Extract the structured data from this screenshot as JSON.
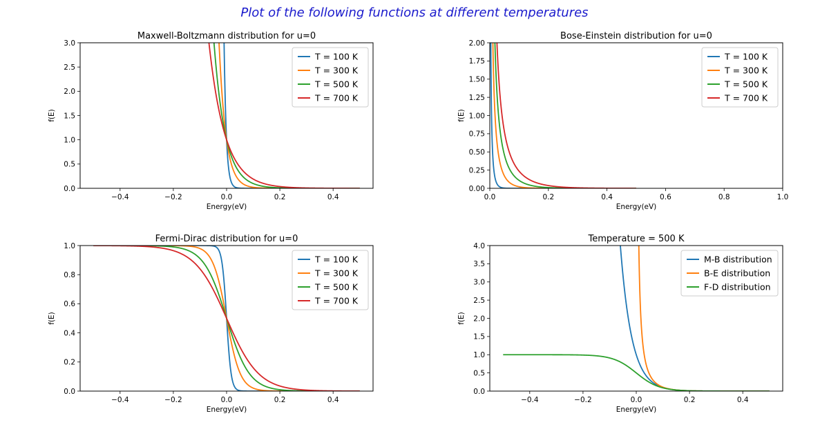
{
  "suptitle": "Plot of the following functions at different temperatures",
  "colors": {
    "blue": "#1f77b4",
    "orange": "#ff7f0e",
    "green": "#2ca02c",
    "red": "#d62728"
  },
  "chart_data": [
    {
      "id": "mb",
      "type": "line",
      "title": "Maxwell-Boltzmann distribution for u=0",
      "xlabel": "Energy(eV)",
      "ylabel": "f(E)",
      "xlim": [
        -0.55,
        0.55
      ],
      "ylim": [
        0,
        3.0
      ],
      "xticks": [
        -0.4,
        -0.2,
        0.0,
        0.2,
        0.4
      ],
      "xtick_labels": [
        "−0.4",
        "−0.2",
        "0.0",
        "0.2",
        "0.4"
      ],
      "yticks": [
        0,
        0.5,
        1.0,
        1.5,
        2.0,
        2.5,
        3.0
      ],
      "ytick_labels": [
        "0.0",
        "0.5",
        "1.0",
        "1.5",
        "2.0",
        "2.5",
        "3.0"
      ],
      "legend": "top-right",
      "function": "maxwell_boltzmann",
      "x_range": [
        -0.5,
        0.5
      ],
      "series": [
        {
          "name": "T = 100 K",
          "T": 100,
          "color": "#1f77b4"
        },
        {
          "name": "T = 300 K",
          "T": 300,
          "color": "#ff7f0e"
        },
        {
          "name": "T = 500 K",
          "T": 500,
          "color": "#2ca02c"
        },
        {
          "name": "T = 700 K",
          "T": 700,
          "color": "#d62728"
        }
      ]
    },
    {
      "id": "be",
      "type": "line",
      "title": "Bose-Einstein distribution for u=0",
      "xlabel": "Energy(eV)",
      "ylabel": "f(E)",
      "xlim": [
        0.0,
        1.0
      ],
      "ylim": [
        0,
        2.0
      ],
      "xticks": [
        0.0,
        0.2,
        0.4,
        0.6,
        0.8,
        1.0
      ],
      "xtick_labels": [
        "0.0",
        "0.2",
        "0.4",
        "0.6",
        "0.8",
        "1.0"
      ],
      "yticks": [
        0,
        0.25,
        0.5,
        0.75,
        1.0,
        1.25,
        1.5,
        1.75,
        2.0
      ],
      "ytick_labels": [
        "0.00",
        "0.25",
        "0.50",
        "0.75",
        "1.00",
        "1.25",
        "1.50",
        "1.75",
        "2.00"
      ],
      "legend": "top-right",
      "function": "bose_einstein",
      "x_range": [
        0.0005,
        0.5
      ],
      "series": [
        {
          "name": "T = 100 K",
          "T": 100,
          "color": "#1f77b4"
        },
        {
          "name": "T = 300 K",
          "T": 300,
          "color": "#ff7f0e"
        },
        {
          "name": "T = 500 K",
          "T": 500,
          "color": "#2ca02c"
        },
        {
          "name": "T = 700 K",
          "T": 700,
          "color": "#d62728"
        }
      ]
    },
    {
      "id": "fd",
      "type": "line",
      "title": "Fermi-Dirac distribution for u=0",
      "xlabel": "Energy(eV)",
      "ylabel": "f(E)",
      "xlim": [
        -0.55,
        0.55
      ],
      "ylim": [
        0,
        1.0
      ],
      "xticks": [
        -0.4,
        -0.2,
        0.0,
        0.2,
        0.4
      ],
      "xtick_labels": [
        "−0.4",
        "−0.2",
        "0.0",
        "0.2",
        "0.4"
      ],
      "yticks": [
        0,
        0.2,
        0.4,
        0.6,
        0.8,
        1.0
      ],
      "ytick_labels": [
        "0.0",
        "0.2",
        "0.4",
        "0.6",
        "0.8",
        "1.0"
      ],
      "legend": "top-right",
      "function": "fermi_dirac",
      "x_range": [
        -0.5,
        0.5
      ],
      "series": [
        {
          "name": "T = 100 K",
          "T": 100,
          "color": "#1f77b4"
        },
        {
          "name": "T = 300 K",
          "T": 300,
          "color": "#ff7f0e"
        },
        {
          "name": "T = 500 K",
          "T": 500,
          "color": "#2ca02c"
        },
        {
          "name": "T = 700 K",
          "T": 700,
          "color": "#d62728"
        }
      ]
    },
    {
      "id": "cmp",
      "type": "line",
      "title": "Temperature = 500 K",
      "xlabel": "Energy(eV)",
      "ylabel": "f(E)",
      "xlim": [
        -0.55,
        0.55
      ],
      "ylim": [
        0,
        4.0
      ],
      "xticks": [
        -0.4,
        -0.2,
        0.0,
        0.2,
        0.4
      ],
      "xtick_labels": [
        "−0.4",
        "−0.2",
        "0.0",
        "0.2",
        "0.4"
      ],
      "yticks": [
        0,
        0.5,
        1.0,
        1.5,
        2.0,
        2.5,
        3.0,
        3.5,
        4.0
      ],
      "ytick_labels": [
        "0.0",
        "0.5",
        "1.0",
        "1.5",
        "2.0",
        "2.5",
        "3.0",
        "3.5",
        "4.0"
      ],
      "legend": "top-right",
      "T": 500,
      "series": [
        {
          "name": "M-B distribution",
          "function": "maxwell_boltzmann",
          "x_range": [
            -0.5,
            0.5
          ],
          "color": "#1f77b4"
        },
        {
          "name": "B-E distribution",
          "function": "bose_einstein",
          "x_range": [
            0.0005,
            0.5
          ],
          "color": "#ff7f0e"
        },
        {
          "name": "F-D distribution",
          "function": "fermi_dirac",
          "x_range": [
            -0.5,
            0.5
          ],
          "color": "#2ca02c"
        }
      ]
    }
  ]
}
